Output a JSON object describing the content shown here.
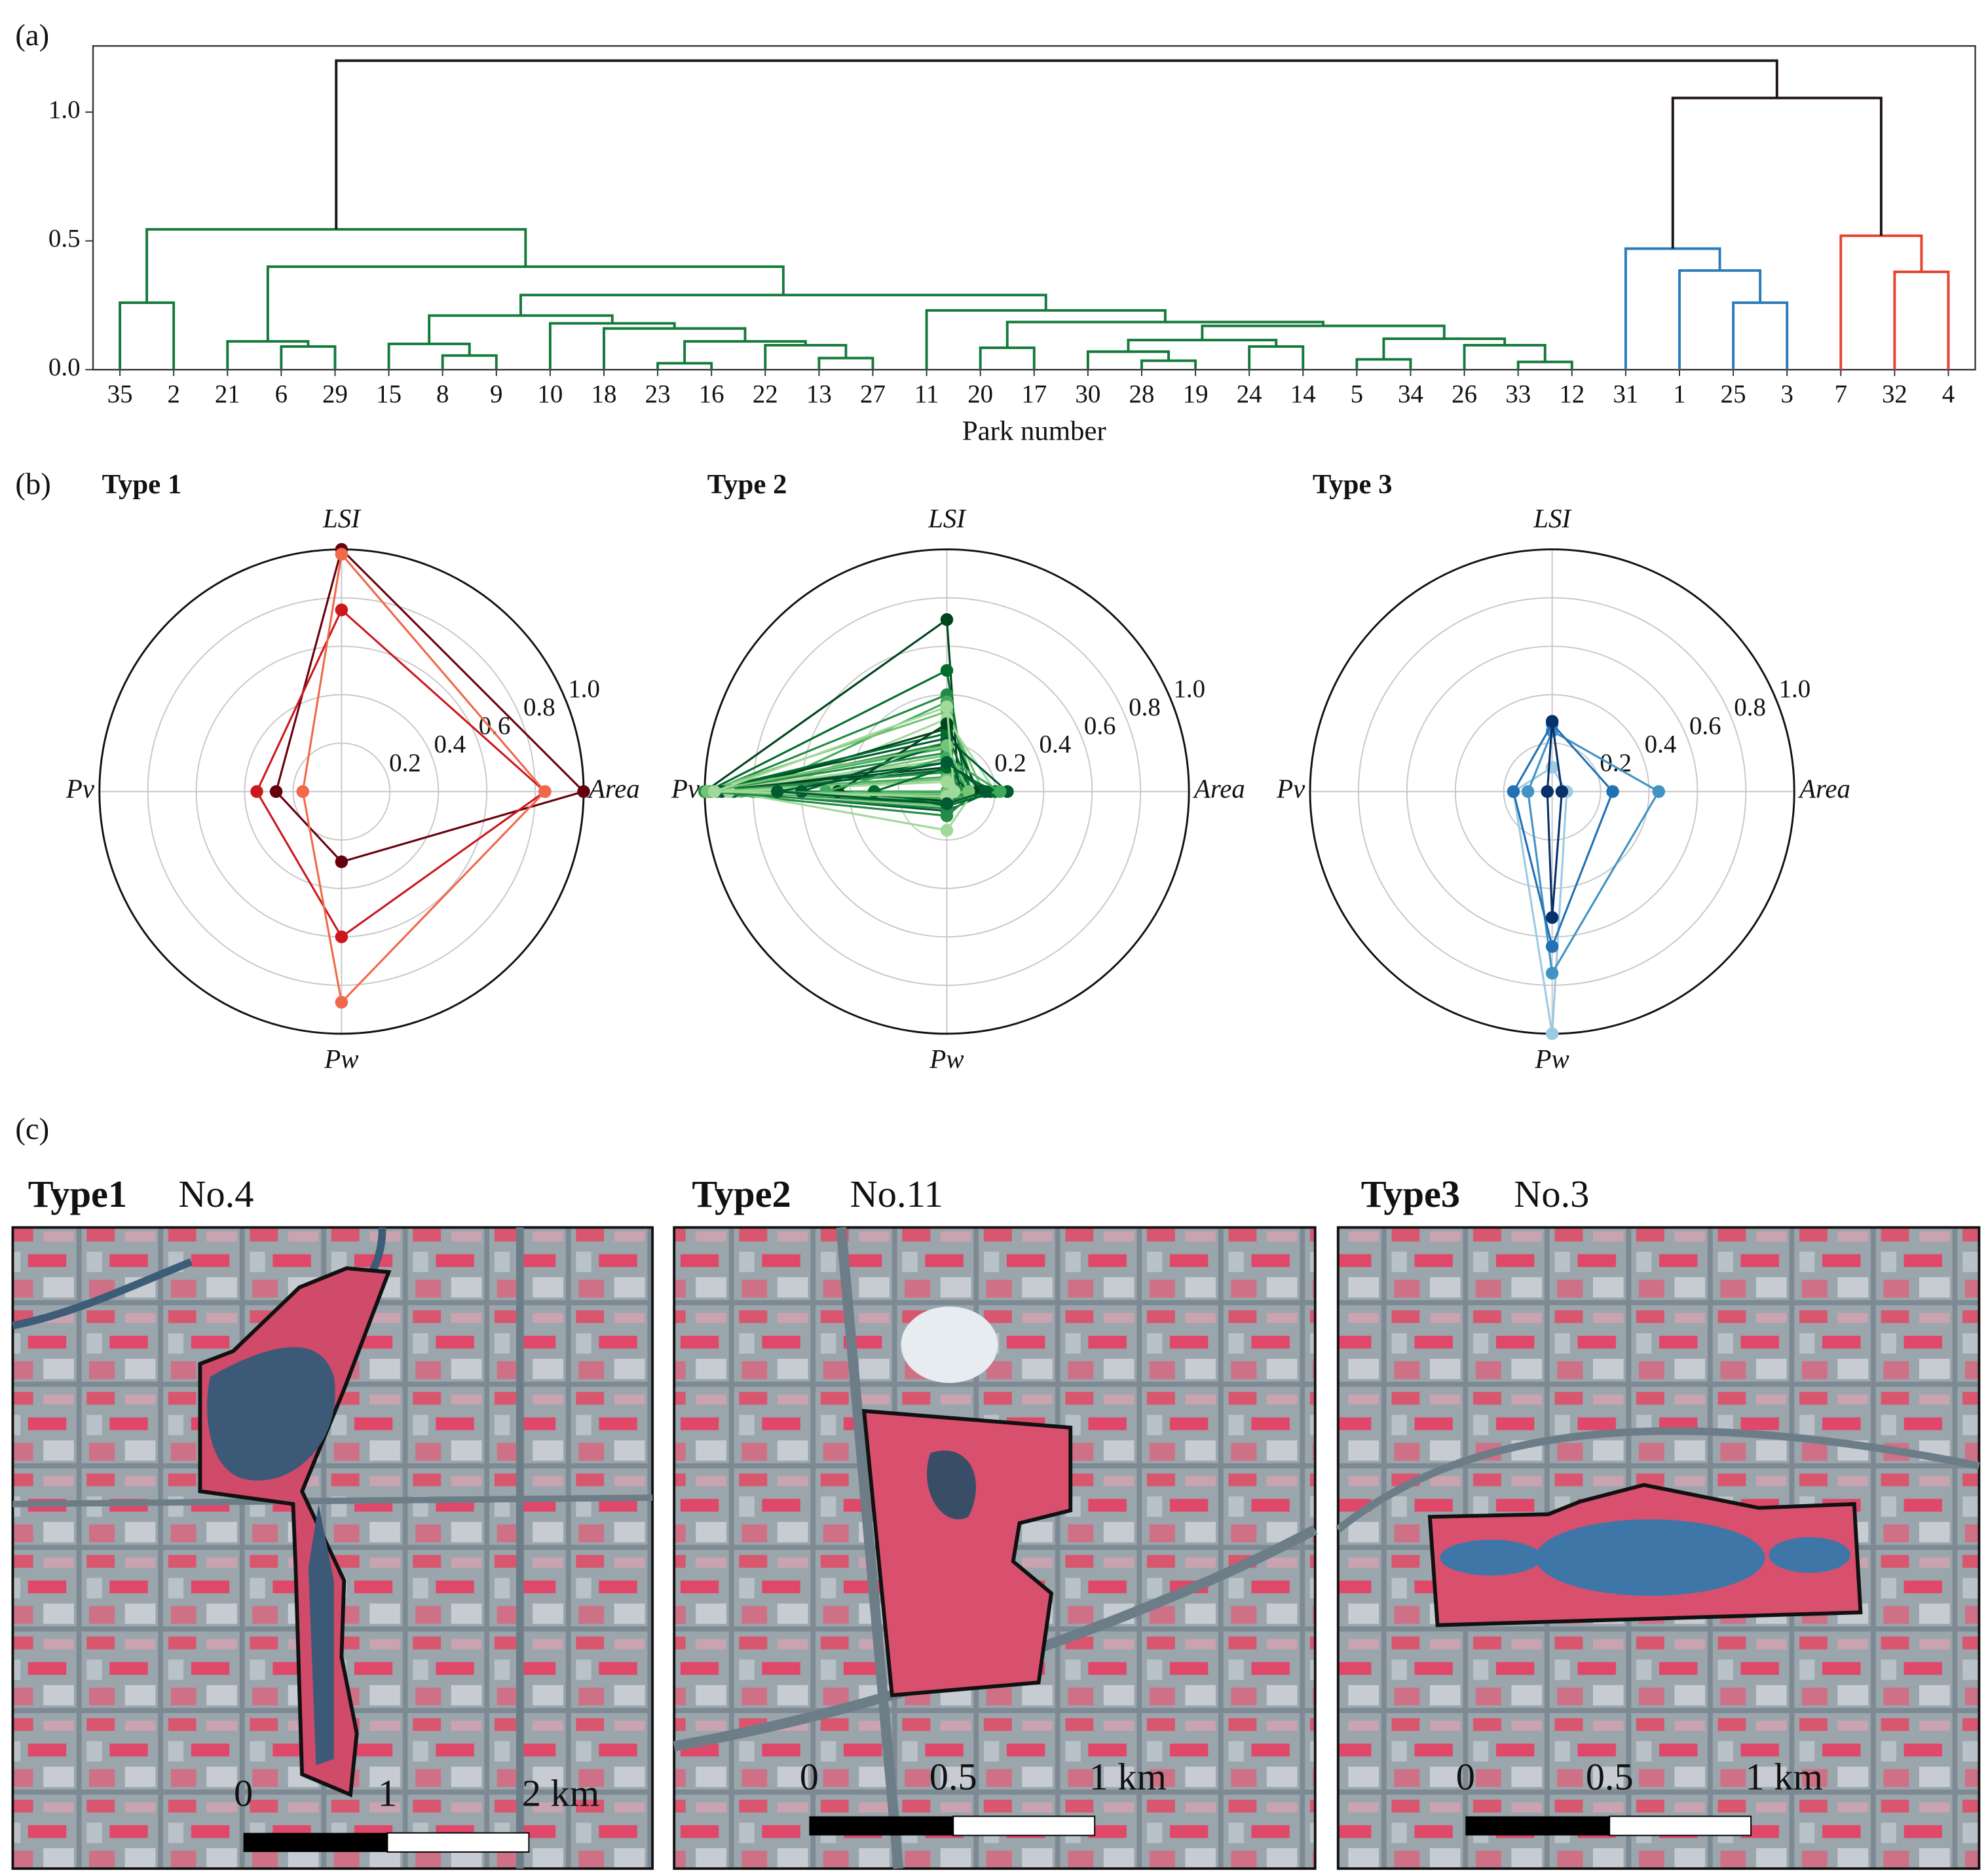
{
  "figure": {
    "panel_labels": [
      "(a)",
      "(b)",
      "(c)"
    ]
  },
  "chart_data": [
    {
      "type": "dendrogram",
      "xlabel": "Park number",
      "ylim": [
        0,
        1.257
      ],
      "yticks": [
        {
          "value": 0,
          "label": "0.0"
        },
        0.5,
        {
          "value": 1,
          "label": "1.0"
        }
      ],
      "tree": {
        "height": 1.2,
        "color": "#1e1414",
        "children": [
          {
            "height": 0.545,
            "color": "#137a3a",
            "children": [
              {
                "height": 0.26,
                "children": [
                  "35",
                  "2"
                ]
              },
              {
                "height": 0.4,
                "children": [
                  {
                    "height": 0.11,
                    "children": [
                      "21",
                      {
                        "height": 0.09,
                        "children": [
                          "6",
                          "29"
                        ]
                      }
                    ]
                  },
                  {
                    "height": 0.29,
                    "children": [
                      {
                        "height": 0.21,
                        "children": [
                          {
                            "height": 0.1,
                            "children": [
                              "15",
                              {
                                "height": 0.055,
                                "children": [
                                  "8",
                                  "9"
                                ]
                              }
                            ]
                          },
                          {
                            "height": 0.18,
                            "children": [
                              "10",
                              {
                                "height": 0.16,
                                "children": [
                                  "18",
                                  {
                                    "height": 0.11,
                                    "children": [
                                      {
                                        "height": 0.025,
                                        "children": [
                                          "23",
                                          "16"
                                        ]
                                      },
                                      {
                                        "height": 0.095,
                                        "children": [
                                          "22",
                                          {
                                            "height": 0.045,
                                            "children": [
                                              "13",
                                              "27"
                                            ]
                                          }
                                        ]
                                      }
                                    ]
                                  }
                                ]
                              }
                            ]
                          }
                        ]
                      },
                      {
                        "height": 0.23,
                        "children": [
                          "11",
                          {
                            "height": 0.185,
                            "children": [
                              {
                                "height": 0.085,
                                "children": [
                                  "20",
                                  "17"
                                ]
                              },
                              {
                                "height": 0.17,
                                "children": [
                                  {
                                    "height": 0.115,
                                    "children": [
                                      {
                                        "height": 0.07,
                                        "children": [
                                          "30",
                                          {
                                            "height": 0.035,
                                            "children": [
                                              "28",
                                              "19"
                                            ]
                                          }
                                        ]
                                      },
                                      {
                                        "height": 0.09,
                                        "children": [
                                          "24",
                                          "14"
                                        ]
                                      }
                                    ]
                                  },
                                  {
                                    "height": 0.12,
                                    "children": [
                                      {
                                        "height": 0.04,
                                        "children": [
                                          "5",
                                          "34"
                                        ]
                                      },
                                      {
                                        "height": 0.095,
                                        "children": [
                                          "26",
                                          {
                                            "height": 0.03,
                                            "children": [
                                              "33",
                                              "12"
                                            ]
                                          }
                                        ]
                                      }
                                    ]
                                  }
                                ]
                              }
                            ]
                          }
                        ]
                      }
                    ]
                  }
                ]
              }
            ]
          },
          {
            "height": 1.055,
            "children": [
              {
                "height": 0.47,
                "color": "#2b7bba",
                "children": [
                  "31",
                  {
                    "height": 0.385,
                    "children": [
                      "1",
                      {
                        "height": 0.26,
                        "children": [
                          "25",
                          "3"
                        ]
                      }
                    ]
                  }
                ]
              },
              {
                "height": 0.52,
                "color": "#e5432e",
                "children": [
                  "7",
                  {
                    "height": 0.38,
                    "children": [
                      "32",
                      "4"
                    ]
                  }
                ]
              }
            ]
          }
        ]
      }
    },
    {
      "type": "radar",
      "title": "Type 1",
      "axes": [
        "Area",
        "LSI",
        "Pv",
        "Pw"
      ],
      "rlim": [
        0,
        1
      ],
      "rticks": [
        0.2,
        0.4,
        0.6,
        0.8,
        {
          "value": 1,
          "label": "1.0"
        }
      ],
      "series": [
        {
          "color": "#67000d",
          "values": [
            1.0,
            1.0,
            0.27,
            0.29
          ]
        },
        {
          "color": "#cb181d",
          "values": [
            0.84,
            0.75,
            0.35,
            0.6
          ]
        },
        {
          "color": "#f0694a",
          "values": [
            0.84,
            0.98,
            0.16,
            0.87
          ]
        }
      ]
    },
    {
      "type": "radar",
      "title": "Type 2",
      "axes": [
        "Area",
        "LSI",
        "Pv",
        "Pw"
      ],
      "rlim": [
        0,
        1
      ],
      "rticks": [
        0.2,
        0.4,
        0.6,
        0.8,
        {
          "value": 1,
          "label": "1.0"
        }
      ],
      "series": [
        {
          "color": "#00441b",
          "values": [
            0.05,
            0.71,
            1.0,
            0.0
          ]
        },
        {
          "color": "#006d2c",
          "values": [
            0.08,
            0.5,
            0.99,
            0.0
          ]
        },
        {
          "color": "#238b45",
          "values": [
            0.1,
            0.4,
            0.98,
            0.02
          ]
        },
        {
          "color": "#41ab5d",
          "values": [
            0.12,
            0.37,
            0.8,
            0.0
          ]
        },
        {
          "color": "#74c476",
          "values": [
            0.15,
            0.33,
            1.0,
            0.03
          ]
        },
        {
          "color": "#a1d99b",
          "values": [
            0.2,
            0.3,
            0.72,
            0.05
          ]
        },
        {
          "color": "#005a32",
          "values": [
            0.25,
            0.22,
            1.0,
            0.0
          ]
        },
        {
          "color": "#00441b",
          "values": [
            0.03,
            0.26,
            0.9,
            0.01
          ]
        },
        {
          "color": "#006d2c",
          "values": [
            0.1,
            0.24,
            1.0,
            0.04
          ]
        },
        {
          "color": "#238b45",
          "values": [
            0.06,
            0.2,
            0.95,
            0.02
          ]
        },
        {
          "color": "#41ab5d",
          "values": [
            0.08,
            0.18,
            1.0,
            0.0
          ]
        },
        {
          "color": "#74c476",
          "values": [
            0.14,
            0.15,
            0.85,
            0.06
          ]
        },
        {
          "color": "#a1d99b",
          "values": [
            0.05,
            0.13,
            1.0,
            0.03
          ]
        },
        {
          "color": "#005a32",
          "values": [
            0.18,
            0.12,
            0.93,
            0.08
          ]
        },
        {
          "color": "#00441b",
          "values": [
            0.09,
            0.1,
            1.0,
            0.02
          ]
        },
        {
          "color": "#006d2c",
          "values": [
            0.04,
            0.09,
            0.88,
            0.05
          ]
        },
        {
          "color": "#238b45",
          "values": [
            0.12,
            0.08,
            1.0,
            0.1
          ]
        },
        {
          "color": "#41ab5d",
          "values": [
            0.07,
            0.06,
            0.97,
            0.04
          ]
        },
        {
          "color": "#74c476",
          "values": [
            0.02,
            0.05,
            1.0,
            0.03
          ]
        },
        {
          "color": "#a1d99b",
          "values": [
            0.11,
            0.04,
            0.9,
            0.16
          ]
        },
        {
          "color": "#005a32",
          "values": [
            0.06,
            0.2,
            0.6,
            0.02
          ]
        },
        {
          "color": "#00441b",
          "values": [
            0.13,
            0.28,
            0.45,
            0.04
          ]
        },
        {
          "color": "#006d2c",
          "values": [
            0.2,
            0.1,
            0.3,
            0.06
          ]
        },
        {
          "color": "#238b45",
          "values": [
            0.05,
            0.16,
            1.0,
            0.07
          ]
        },
        {
          "color": "#41ab5d",
          "values": [
            0.22,
            0.14,
            0.5,
            0.03
          ]
        },
        {
          "color": "#74c476",
          "values": [
            0.09,
            0.19,
            0.99,
            0.01
          ]
        },
        {
          "color": "#a1d99b",
          "values": [
            0.03,
            0.35,
            0.96,
            0.02
          ]
        },
        {
          "color": "#005a32",
          "values": [
            0.16,
            0.12,
            0.7,
            0.05
          ]
        }
      ]
    },
    {
      "type": "radar",
      "title": "Type 3",
      "axes": [
        "Area",
        "LSI",
        "Pv",
        "Pw"
      ],
      "rlim": [
        0,
        1
      ],
      "rticks": [
        0.2,
        0.4,
        0.6,
        0.8,
        {
          "value": 1,
          "label": "1.0"
        }
      ],
      "series": [
        {
          "color": "#9ecae1",
          "values": [
            0.06,
            0.1,
            0.16,
            1.0
          ]
        },
        {
          "color": "#4292c6",
          "values": [
            0.44,
            0.25,
            0.1,
            0.75
          ]
        },
        {
          "color": "#2171b5",
          "values": [
            0.25,
            0.28,
            0.16,
            0.64
          ]
        },
        {
          "color": "#08306b",
          "values": [
            0.04,
            0.29,
            0.02,
            0.52
          ]
        }
      ]
    }
  ],
  "maps": [
    {
      "type_label": "Type1",
      "park": "No.4",
      "scale_labels": [
        "0",
        "1",
        "2 km"
      ]
    },
    {
      "type_label": "Type2",
      "park": "No.11",
      "scale_labels": [
        "0",
        "0.5",
        "1 km"
      ]
    },
    {
      "type_label": "Type3",
      "park": "No.3",
      "scale_labels": [
        "0",
        "0.5",
        "1 km"
      ]
    }
  ]
}
